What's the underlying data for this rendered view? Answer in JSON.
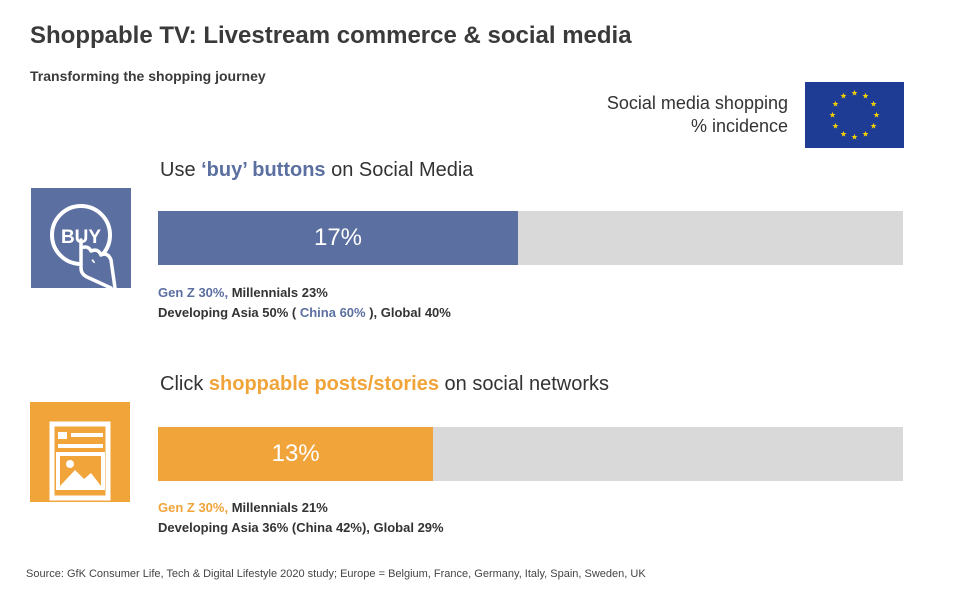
{
  "title": "Shoppable TV: Livestream commerce & social media",
  "subtitle": "Transforming the shopping journey",
  "legend": {
    "line1": "Social media shopping",
    "line2": "% incidence"
  },
  "colors": {
    "blue": "#5b6fa1",
    "orange": "#f0a43a",
    "track": "#d9d9d9",
    "flag_blue": "#1f3c94",
    "flag_star": "#f5d200"
  },
  "icons": {
    "buy": "buy-button-hand-icon",
    "post": "social-post-icon",
    "flag": "eu-flag-icon"
  },
  "chart_data": {
    "type": "bar",
    "orientation": "horizontal",
    "xlim": [
      0,
      100
    ],
    "categories": [
      {
        "heading_pre": "Use ",
        "heading_hl": "‘buy’ buttons",
        "heading_post": " on Social Media",
        "value": 17,
        "value_label": "17%",
        "color": "#5b6fa1",
        "details_line1_hl": "Gen Z 30%,",
        "details_line1_rest": " Millennials 23%",
        "details_line2_pre": "Developing Asia 50% ( ",
        "details_line2_hl": "China 60%",
        "details_line2_post": " ), Global 40%"
      },
      {
        "heading_pre": "Click ",
        "heading_hl": "shoppable posts/stories",
        "heading_post": "  on social networks",
        "value": 13,
        "value_label": "13%",
        "color": "#f0a43a",
        "details_line1_hl": "Gen Z 30%,",
        "details_line1_rest": "  Millennials 21%",
        "details_line2_pre": "Developing Asia 36% (China 42%), Global 29%",
        "details_line2_hl": "",
        "details_line2_post": ""
      }
    ]
  },
  "source": "Source: GfK Consumer Life, Tech & Digital Lifestyle 2020 study; Europe = Belgium, France, Germany, Italy, Spain, Sweden, UK"
}
